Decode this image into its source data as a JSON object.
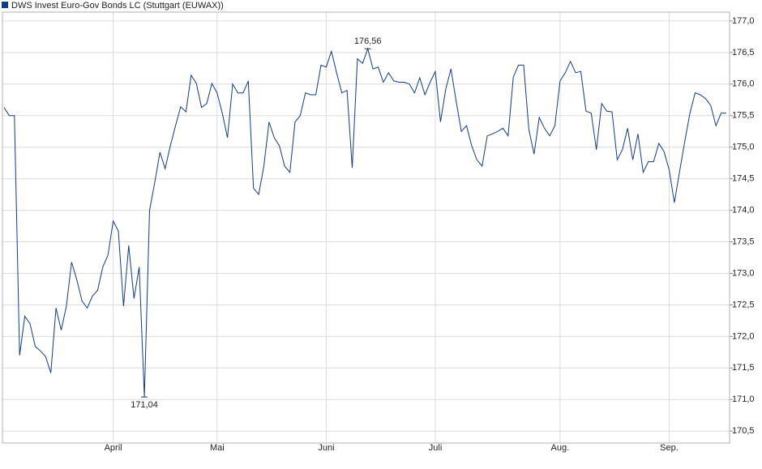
{
  "chart_data": {
    "type": "line",
    "series": [
      {
        "name": "DWS Invest Euro-Gov Bonds LC (Stuttgart (EUWAX))",
        "color": "#0f3c8c",
        "values": [
          175.63,
          175.5,
          175.5,
          171.7,
          172.32,
          172.2,
          171.84,
          171.77,
          171.68,
          171.42,
          172.45,
          172.1,
          172.48,
          173.18,
          172.9,
          172.56,
          172.45,
          172.64,
          172.73,
          173.1,
          173.29,
          173.83,
          173.67,
          172.48,
          173.44,
          172.6,
          173.1,
          171.04,
          174.0,
          174.44,
          174.92,
          174.66,
          175.02,
          175.34,
          175.64,
          175.56,
          176.14,
          176.01,
          175.63,
          175.69,
          176.01,
          175.86,
          175.54,
          175.15,
          176.0,
          175.86,
          175.86,
          176.05,
          174.35,
          174.25,
          174.7,
          175.4,
          175.15,
          175.02,
          174.7,
          174.6,
          175.4,
          175.5,
          175.86,
          175.83,
          175.83,
          176.3,
          176.27,
          176.52,
          176.18,
          175.86,
          175.9,
          174.67,
          176.4,
          176.33,
          176.56,
          176.24,
          176.27,
          176.03,
          176.18,
          176.05,
          176.03,
          176.03,
          176.0,
          175.86,
          176.1,
          175.83,
          176.03,
          176.2,
          175.4,
          175.92,
          176.24,
          175.73,
          175.25,
          175.34,
          175.02,
          174.8,
          174.7,
          175.18,
          175.21,
          175.25,
          175.3,
          175.18,
          176.11,
          176.3,
          176.3,
          175.28,
          174.89,
          175.47,
          175.3,
          175.18,
          175.34,
          176.05,
          176.18,
          176.36,
          176.18,
          176.2,
          175.57,
          175.54,
          174.96,
          175.69,
          175.57,
          175.56,
          174.8,
          174.96,
          175.3,
          174.8,
          175.21,
          174.6,
          174.77,
          174.77,
          175.06,
          174.93,
          174.64,
          174.12,
          174.61,
          175.09,
          175.54,
          175.86,
          175.83,
          175.77,
          175.66,
          175.34,
          175.54,
          175.54
        ]
      }
    ],
    "categories": [
      null,
      null,
      null,
      null,
      null,
      null,
      null,
      null,
      null,
      null,
      null,
      null,
      null,
      null,
      null,
      null,
      null,
      null,
      null,
      null,
      null,
      "April",
      null,
      null,
      null,
      null,
      null,
      null,
      null,
      null,
      null,
      null,
      null,
      null,
      null,
      null,
      null,
      null,
      null,
      null,
      null,
      "Mai",
      null,
      null,
      null,
      null,
      null,
      null,
      null,
      null,
      null,
      null,
      null,
      null,
      null,
      null,
      null,
      null,
      null,
      null,
      null,
      null,
      "Juni",
      null,
      null,
      null,
      null,
      null,
      null,
      null,
      null,
      null,
      null,
      null,
      null,
      null,
      null,
      null,
      null,
      null,
      null,
      null,
      null,
      "Juli",
      null,
      null,
      null,
      null,
      null,
      null,
      null,
      null,
      null,
      null,
      null,
      null,
      null,
      null,
      null,
      null,
      null,
      null,
      null,
      null,
      null,
      null,
      null,
      "Aug.",
      null,
      null,
      null,
      null,
      null,
      null,
      null,
      null,
      null,
      null,
      null,
      null,
      null,
      null,
      null,
      null,
      null,
      null,
      null,
      null,
      "Sep.",
      null,
      null,
      null,
      null,
      null,
      null,
      null,
      null,
      null,
      null,
      null
    ],
    "annotations": [
      {
        "value": 176.56,
        "label": "176,56"
      },
      {
        "value": 171.04,
        "label": "171,04"
      }
    ],
    "ylim": [
      170.31,
      177.14
    ],
    "yticks": [
      {
        "value": 177,
        "label": "177,0"
      },
      {
        "value": 176.5,
        "label": "176,5"
      },
      {
        "value": 176,
        "label": "176,0"
      },
      {
        "value": 175.5,
        "label": "175,5"
      },
      {
        "value": 175,
        "label": "175,0"
      },
      {
        "value": 174.5,
        "label": "174,5"
      },
      {
        "value": 174,
        "label": "174,0"
      },
      {
        "value": 173.5,
        "label": "173,5"
      },
      {
        "value": 173,
        "label": "173,0"
      },
      {
        "value": 172.5,
        "label": "172,5"
      },
      {
        "value": 172,
        "label": "172,0"
      },
      {
        "value": 171.5,
        "label": "171,5"
      },
      {
        "value": 171,
        "label": "171,0"
      },
      {
        "value": 170.5,
        "label": "170,5"
      }
    ],
    "grid": true
  }
}
